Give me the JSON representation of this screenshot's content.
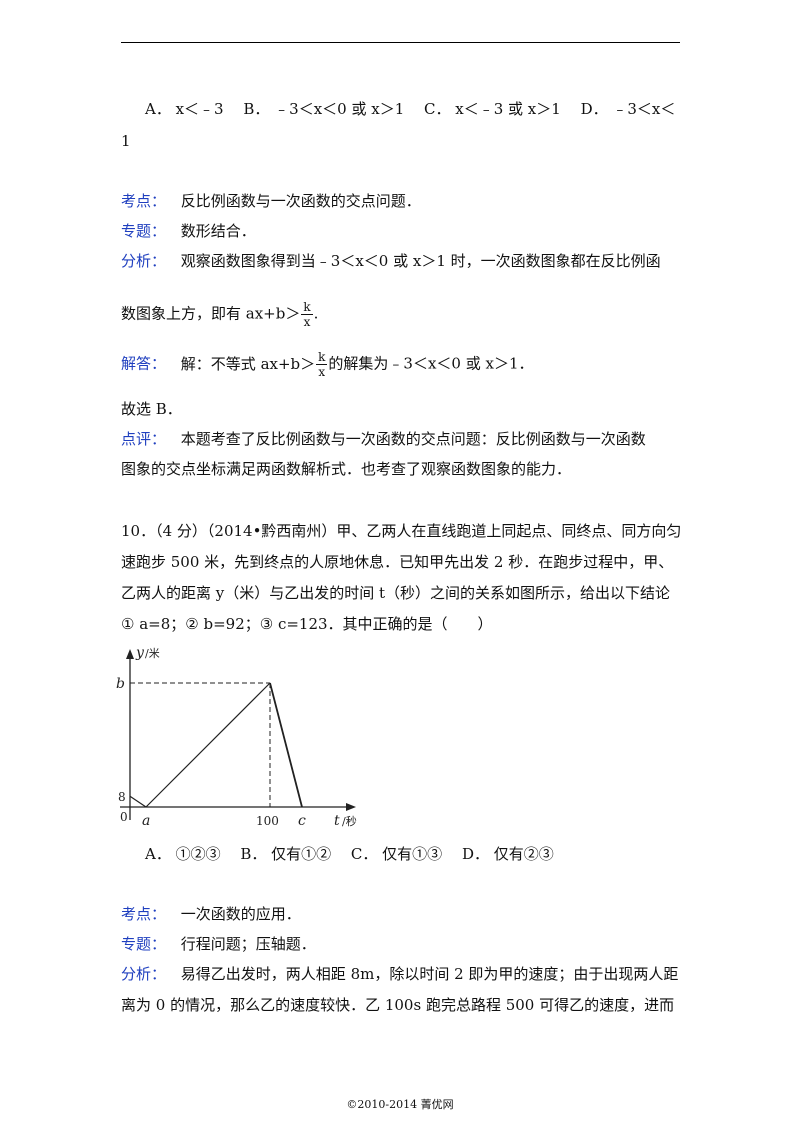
{
  "prev_question": {
    "options_line1": "A． x＜﹣3　  B． ﹣3＜x＜0 或 x＞1　  C． x＜﹣3 或 x＞1　  D． ﹣3＜x＜",
    "options_line2": "1"
  },
  "prev_solution": {
    "kaodian_label": "考点：",
    "kaodian_text": "反比例函数与一次函数的交点问题．",
    "zhuanti_label": "专题：",
    "zhuanti_text": "数形结合．",
    "fenxi_label": "分析：",
    "fenxi_line1": "观察函数图象得到当﹣3＜x＜0 或 x＞1 时，一次函数图象都在反比例函",
    "fenxi_line2_pre": "数图象上方，即有 ax+b＞",
    "fenxi_line2_post": ".",
    "frac_num": "k",
    "frac_den": "x",
    "jieda_label": "解答：",
    "jieda_pre": "解：不等式 ax+b＞",
    "jieda_post": "的解集为﹣3＜x＜0 或 x＞1．",
    "guxuan": "故选 B．",
    "dianping_label": "点评：",
    "dianping_line1": "本题考查了反比例函数与一次函数的交点问题：反比例函数与一次函数",
    "dianping_line2": "图象的交点坐标满足两函数解析式．也考查了观察函数图象的能力．"
  },
  "question10": {
    "line1": "10．（4 分）（2014•黔西南州）甲、乙两人在直线跑道上同起点、同终点、同方向匀",
    "line2": "速跑步 500 米，先到终点的人原地休息．已知甲先出发 2 秒．在跑步过程中，甲、",
    "line3": "乙两人的距离 y（米）与乙出发的时间 t（秒）之间的关系如图所示，给出以下结论",
    "line4": "① a=8；② b=92；③ c=123．其中正确的是（　　）",
    "options": "A．  ①②③　  B．  仅有①②　  C．  仅有①③　  D．  仅有②③"
  },
  "chart_data": {
    "type": "line",
    "y_axis_label": "y",
    "y_axis_unit": "/米",
    "x_axis_label": "t",
    "x_axis_unit": "/秒",
    "origin_label": "0",
    "y_tick_labels": [
      "8",
      "b"
    ],
    "x_tick_labels": [
      "a",
      "100",
      "c"
    ],
    "x": [
      0,
      8,
      100,
      123
    ],
    "y": [
      8,
      0,
      92,
      0
    ],
    "line_color": "#222222"
  },
  "q10_solution": {
    "kaodian_label": "考点：",
    "kaodian_text": "一次函数的应用．",
    "zhuanti_label": "专题：",
    "zhuanti_text": "行程问题；压轴题．",
    "fenxi_label": "分析：",
    "fenxi_line1": "易得乙出发时，两人相距 8m，除以时间 2 即为甲的速度；由于出现两人距",
    "fenxi_line2": "离为 0 的情况，那么乙的速度较快．乙 100s 跑完总路程 500 可得乙的速度，进而"
  },
  "footer": "©2010-2014 菁优网"
}
